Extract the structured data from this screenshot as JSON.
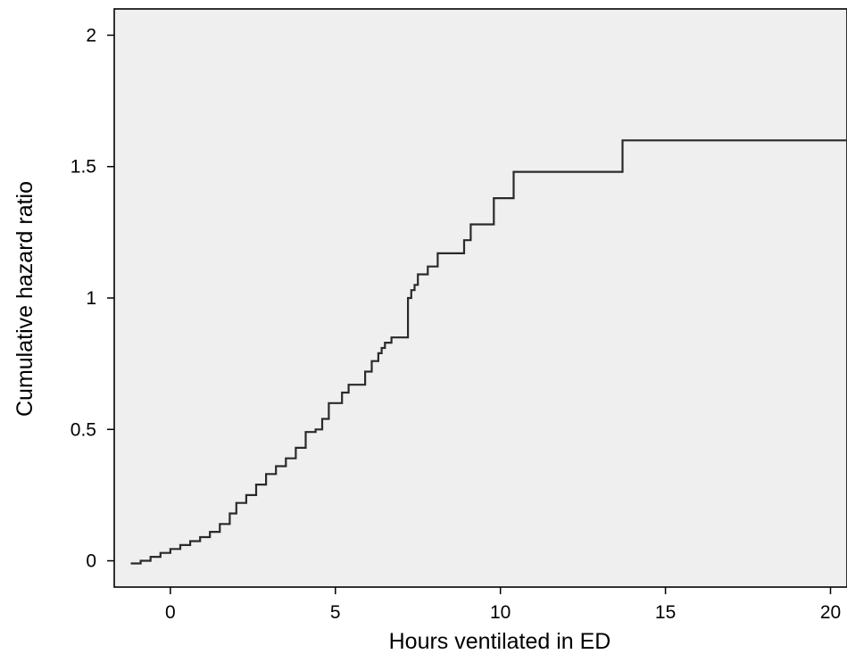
{
  "chart_data": {
    "type": "line",
    "title": "",
    "xlabel": "Hours ventilated in ED",
    "ylabel": "Cumulative hazard ratio",
    "xlim": [
      -1.7,
      20.5
    ],
    "ylim": [
      -0.1,
      2.1
    ],
    "x_ticks": [
      0,
      5,
      10,
      15,
      20
    ],
    "x_tick_labels": [
      "0",
      "5",
      "10",
      "15",
      "20"
    ],
    "y_ticks": [
      0,
      0.5,
      1,
      1.5,
      2
    ],
    "y_tick_labels": [
      "0",
      "0.5",
      "1",
      "1.5",
      "2"
    ],
    "grid": false,
    "legend": "none",
    "colors": {
      "plot_background": "#efefef",
      "line": "#2a2a2a",
      "axis": "#000000"
    },
    "series": [
      {
        "step": true,
        "x": [
          -1.2,
          -0.9,
          -0.6,
          -0.3,
          0.0,
          0.3,
          0.6,
          0.9,
          1.2,
          1.5,
          1.8,
          2.0,
          2.3,
          2.6,
          2.9,
          3.2,
          3.5,
          3.8,
          4.1,
          4.4,
          4.6,
          4.8,
          5.2,
          5.4,
          5.5,
          5.9,
          6.1,
          6.3,
          6.4,
          6.5,
          6.7,
          6.8,
          7.2,
          7.3,
          7.4,
          7.5,
          7.6,
          7.8,
          8.1,
          8.9,
          9.1,
          9.8,
          10.4,
          13.7,
          20.5
        ],
        "y": [
          -0.01,
          0.0,
          0.015,
          0.03,
          0.045,
          0.06,
          0.075,
          0.09,
          0.11,
          0.14,
          0.18,
          0.22,
          0.25,
          0.29,
          0.33,
          0.36,
          0.39,
          0.43,
          0.49,
          0.5,
          0.54,
          0.6,
          0.64,
          0.67,
          0.67,
          0.72,
          0.76,
          0.79,
          0.81,
          0.83,
          0.85,
          0.85,
          1.0,
          1.03,
          1.05,
          1.09,
          1.09,
          1.12,
          1.17,
          1.22,
          1.28,
          1.38,
          1.48,
          1.6,
          1.6
        ]
      }
    ]
  }
}
